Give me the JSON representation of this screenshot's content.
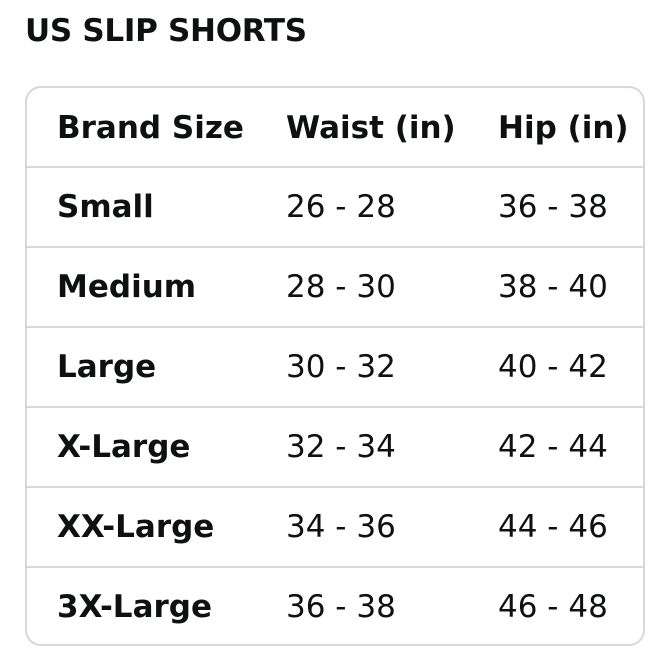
{
  "title": "US SLIP SHORTS",
  "table": {
    "headers": [
      "Brand Size",
      "Waist (in)",
      "Hip (in)"
    ],
    "rows": [
      [
        "Small",
        "26 - 28",
        "36 - 38"
      ],
      [
        "Medium",
        "28 - 30",
        "38 - 40"
      ],
      [
        "Large",
        "30 - 32",
        "40 - 42"
      ],
      [
        "X-Large",
        "32 - 34",
        "42 - 44"
      ],
      [
        "XX-Large",
        "34 - 36",
        "44 - 46"
      ],
      [
        "3X-Large",
        "36 - 38",
        "46 - 48"
      ]
    ]
  },
  "colors": {
    "text": "#0f1111",
    "border": "#d5d9d9",
    "background": "#ffffff"
  }
}
